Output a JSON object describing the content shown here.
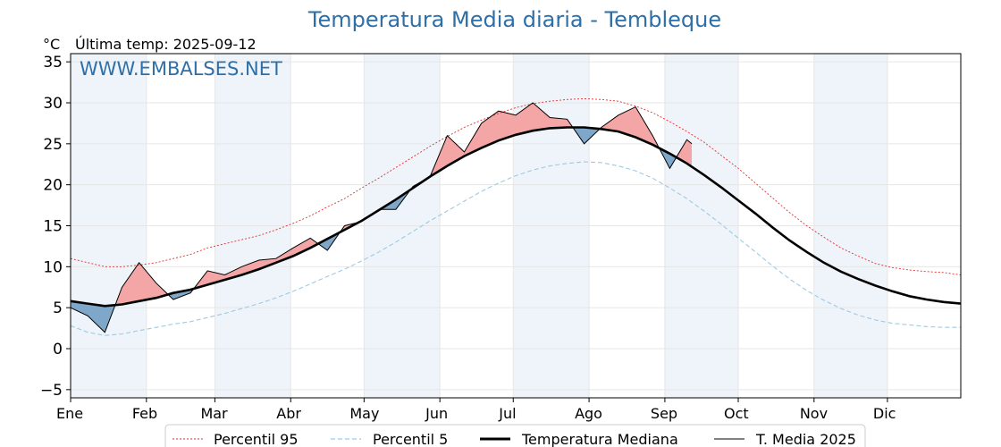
{
  "header": {
    "title": "Temperatura Media diaria - Tembleque",
    "unit": "°C",
    "last_temp": "Última temp: 2025-09-12",
    "watermark": "WWW.EMBALSES.NET"
  },
  "legend": [
    {
      "label": "Percentil 95",
      "color": "#e03030",
      "style": "dotted"
    },
    {
      "label": "Percentil 5",
      "color": "#9ecae1",
      "style": "dashed"
    },
    {
      "label": "Temperatura Mediana",
      "color": "#000000",
      "style": "thick"
    },
    {
      "label": "T. Media 2025",
      "color": "#000000",
      "style": "thin"
    }
  ],
  "colors": {
    "above_fill": "#f4a6a6",
    "above_strong": "#e74c4c",
    "below_fill": "#7fa7c9",
    "below_strong": "#2b6aa0",
    "month_band": "#eef4fa"
  },
  "chart_data": {
    "type": "line",
    "title": "Temperatura Media diaria - Tembleque",
    "ylabel": "°C",
    "ylim": [
      -6,
      36
    ],
    "xlim": [
      1,
      365
    ],
    "yticks": [
      -5,
      0,
      5,
      10,
      15,
      20,
      25,
      30,
      35
    ],
    "months": [
      "Ene",
      "Feb",
      "Mar",
      "Abr",
      "May",
      "Jun",
      "Jul",
      "Ago",
      "Sep",
      "Oct",
      "Nov",
      "Dic"
    ],
    "month_start_days": [
      1,
      32,
      60,
      91,
      121,
      152,
      182,
      213,
      244,
      274,
      305,
      335
    ],
    "grid": true,
    "legend_position": "bottom",
    "series": [
      {
        "name": "Percentil 95",
        "x": [
          1,
          8,
          15,
          22,
          29,
          36,
          43,
          50,
          57,
          64,
          71,
          78,
          85,
          92,
          99,
          106,
          113,
          120,
          127,
          134,
          141,
          148,
          155,
          162,
          169,
          176,
          183,
          190,
          197,
          204,
          211,
          218,
          225,
          232,
          239,
          246,
          253,
          260,
          267,
          274,
          281,
          288,
          295,
          302,
          309,
          316,
          323,
          330,
          337,
          344,
          351,
          358,
          365
        ],
        "values": [
          11.0,
          10.5,
          10.0,
          10.0,
          10.2,
          10.5,
          11.0,
          11.5,
          12.3,
          12.8,
          13.3,
          13.8,
          14.5,
          15.3,
          16.2,
          17.3,
          18.3,
          19.6,
          20.8,
          22.1,
          23.4,
          24.7,
          25.9,
          27.0,
          27.9,
          28.7,
          29.4,
          29.9,
          30.2,
          30.4,
          30.5,
          30.4,
          30.2,
          29.6,
          28.8,
          27.7,
          26.5,
          25.2,
          23.6,
          22.0,
          20.2,
          18.4,
          16.6,
          15.0,
          13.6,
          12.3,
          11.3,
          10.4,
          9.9,
          9.6,
          9.4,
          9.3,
          9.0
        ]
      },
      {
        "name": "Percentil 5",
        "x": [
          1,
          8,
          15,
          22,
          29,
          36,
          43,
          50,
          57,
          64,
          71,
          78,
          85,
          92,
          99,
          106,
          113,
          120,
          127,
          134,
          141,
          148,
          155,
          162,
          169,
          176,
          183,
          190,
          197,
          204,
          211,
          218,
          225,
          232,
          239,
          246,
          253,
          260,
          267,
          274,
          281,
          288,
          295,
          302,
          309,
          316,
          323,
          330,
          337,
          344,
          351,
          358,
          365
        ],
        "values": [
          2.8,
          2.0,
          1.6,
          1.8,
          2.2,
          2.6,
          3.0,
          3.3,
          3.8,
          4.3,
          4.9,
          5.5,
          6.2,
          7.0,
          7.9,
          8.8,
          9.7,
          10.7,
          11.8,
          13.0,
          14.3,
          15.6,
          16.8,
          18.0,
          19.2,
          20.2,
          21.1,
          21.8,
          22.3,
          22.6,
          22.8,
          22.7,
          22.3,
          21.7,
          20.8,
          19.6,
          18.3,
          16.8,
          15.2,
          13.5,
          11.8,
          10.1,
          8.5,
          7.1,
          5.9,
          4.9,
          4.1,
          3.5,
          3.1,
          2.9,
          2.7,
          2.6,
          2.6
        ]
      },
      {
        "name": "Temperatura Mediana",
        "x": [
          1,
          8,
          15,
          22,
          29,
          36,
          43,
          50,
          57,
          64,
          71,
          78,
          85,
          92,
          99,
          106,
          113,
          120,
          127,
          134,
          141,
          148,
          155,
          162,
          169,
          176,
          183,
          190,
          197,
          204,
          211,
          218,
          225,
          232,
          239,
          246,
          253,
          260,
          267,
          274,
          281,
          288,
          295,
          302,
          309,
          316,
          323,
          330,
          337,
          344,
          351,
          358,
          365
        ],
        "values": [
          5.8,
          5.5,
          5.2,
          5.4,
          5.8,
          6.2,
          6.8,
          7.2,
          7.8,
          8.4,
          9.0,
          9.7,
          10.5,
          11.3,
          12.3,
          13.4,
          14.5,
          15.6,
          16.9,
          18.2,
          19.6,
          21.0,
          22.3,
          23.5,
          24.5,
          25.4,
          26.1,
          26.6,
          26.9,
          27.0,
          27.0,
          26.8,
          26.5,
          25.8,
          24.9,
          23.8,
          22.6,
          21.2,
          19.7,
          18.1,
          16.5,
          14.8,
          13.2,
          11.8,
          10.5,
          9.4,
          8.5,
          7.7,
          7.0,
          6.4,
          6.0,
          5.7,
          5.5
        ]
      },
      {
        "name": "T. Media 2025",
        "x": [
          1,
          8,
          15,
          22,
          29,
          36,
          43,
          50,
          57,
          64,
          71,
          78,
          85,
          92,
          99,
          106,
          113,
          120,
          127,
          134,
          141,
          148,
          155,
          162,
          169,
          176,
          183,
          190,
          197,
          204,
          211,
          218,
          225,
          232,
          239,
          246,
          253,
          255
        ],
        "values": [
          5.0,
          4.0,
          2.0,
          7.5,
          10.5,
          8.0,
          6.0,
          6.8,
          9.5,
          9.0,
          10.0,
          10.8,
          11.0,
          12.3,
          13.5,
          12.0,
          15.0,
          15.5,
          17.0,
          17.0,
          19.8,
          21.0,
          26.0,
          24.0,
          27.5,
          29.0,
          28.5,
          30.0,
          28.2,
          28.0,
          25.0,
          27.0,
          28.5,
          29.5,
          26.0,
          22.0,
          25.5,
          25.0
        ]
      }
    ]
  }
}
